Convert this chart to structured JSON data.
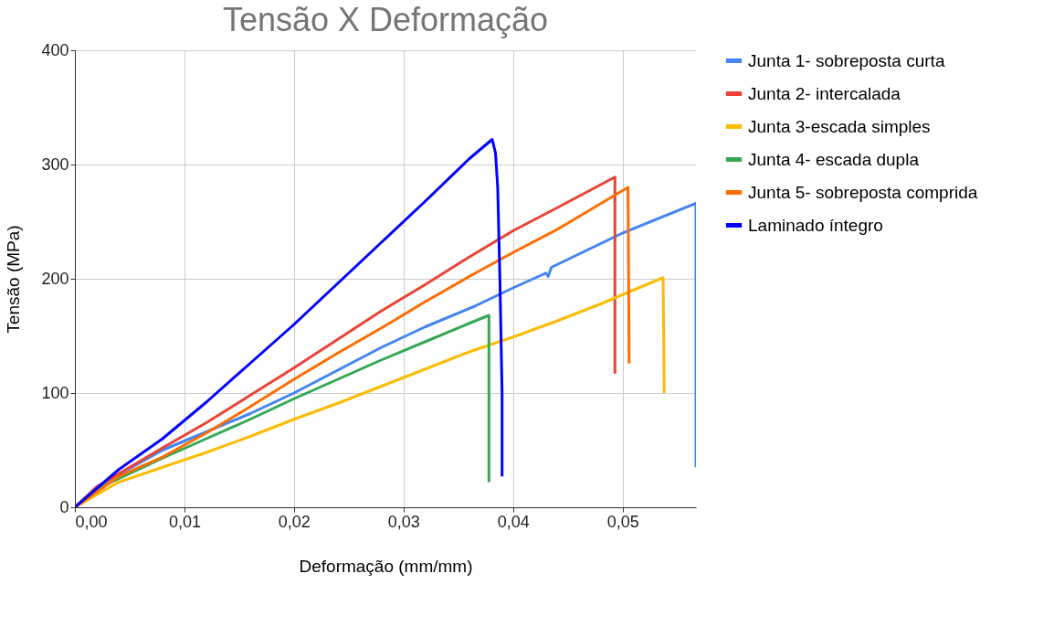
{
  "chart_data": {
    "type": "line",
    "title": "Tensão X Deformação",
    "xlabel": "Deformação (mm/mm)",
    "ylabel": "Tensão (MPa)",
    "xlim": [
      0,
      0.0567
    ],
    "ylim": [
      0,
      400
    ],
    "xticks": [
      {
        "value": 0,
        "label": "0,00"
      },
      {
        "value": 0.01,
        "label": "0,01"
      },
      {
        "value": 0.02,
        "label": "0,02"
      },
      {
        "value": 0.03,
        "label": "0,03"
      },
      {
        "value": 0.04,
        "label": "0,04"
      },
      {
        "value": 0.05,
        "label": "0,05"
      }
    ],
    "yticks": [
      0,
      100,
      200,
      300,
      400
    ],
    "grid": true,
    "legend": "right",
    "marker": "none",
    "line_style": "solid",
    "series": [
      {
        "name": "Junta 1- sobreposta curta",
        "color": "#4285f4",
        "x": [
          0,
          0.002,
          0.008,
          0.012,
          0.016,
          0.02,
          0.024,
          0.028,
          0.032,
          0.0365,
          0.04,
          0.043,
          0.0432,
          0.0435,
          0.05,
          0.0567,
          0.0567
        ],
        "values": [
          0,
          18,
          50,
          66,
          82,
          100,
          120,
          140,
          158,
          176,
          192,
          205,
          202,
          210,
          240,
          266,
          35
        ]
      },
      {
        "name": "Junta 2- intercalada",
        "color": "#ea4335",
        "x": [
          0,
          0.002,
          0.008,
          0.012,
          0.016,
          0.02,
          0.024,
          0.028,
          0.032,
          0.036,
          0.04,
          0.044,
          0.0493,
          0.0493
        ],
        "values": [
          0,
          18,
          52,
          74,
          98,
          122,
          147,
          172,
          195,
          219,
          242,
          262,
          289,
          117
        ]
      },
      {
        "name": "Junta 3-escada simples",
        "color": "#fbbc04",
        "x": [
          0,
          0.004,
          0.008,
          0.012,
          0.016,
          0.02,
          0.024,
          0.028,
          0.032,
          0.036,
          0.04,
          0.044,
          0.048,
          0.0537,
          0.0538
        ],
        "values": [
          0,
          22,
          35,
          48,
          62,
          77,
          91,
          106,
          121,
          136,
          149,
          163,
          178,
          201,
          100
        ]
      },
      {
        "name": "Junta 4- escada dupla",
        "color": "#34a853",
        "x": [
          0,
          0.002,
          0.008,
          0.012,
          0.016,
          0.02,
          0.024,
          0.028,
          0.032,
          0.036,
          0.0378,
          0.0378
        ],
        "values": [
          0,
          16,
          43,
          60,
          77,
          95,
          112,
          129,
          145,
          161,
          168,
          22
        ]
      },
      {
        "name": "Junta 5- sobreposta comprida",
        "color": "#ff6d01",
        "x": [
          0,
          0.004,
          0.008,
          0.012,
          0.016,
          0.02,
          0.024,
          0.028,
          0.032,
          0.036,
          0.04,
          0.044,
          0.0505,
          0.0506
        ],
        "values": [
          0,
          27,
          44,
          65,
          88,
          112,
          135,
          157,
          180,
          202,
          223,
          243,
          280,
          126
        ]
      },
      {
        "name": "Laminado íntegro",
        "color": "#0000ff",
        "x": [
          0,
          0.004,
          0.008,
          0.012,
          0.016,
          0.02,
          0.024,
          0.028,
          0.032,
          0.036,
          0.0381,
          0.0384,
          0.0386,
          0.0388,
          0.039,
          0.039
        ],
        "values": [
          0,
          33,
          60,
          92,
          126,
          160,
          196,
          232,
          268,
          305,
          322,
          310,
          280,
          200,
          100,
          27
        ]
      }
    ]
  }
}
